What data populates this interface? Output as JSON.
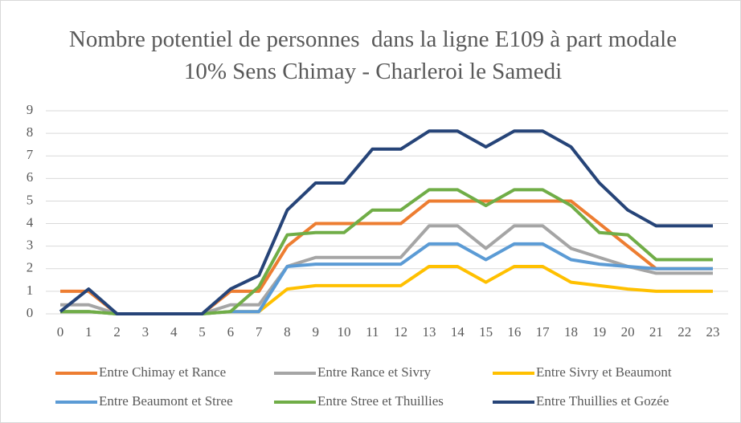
{
  "chart_data": {
    "type": "line",
    "title": "Nombre potentiel de personnes  dans la ligne E109 à part modale 10% Sens Chimay - Charleroi le Samedi",
    "x": [
      0,
      1,
      2,
      3,
      4,
      5,
      6,
      7,
      8,
      9,
      10,
      11,
      12,
      13,
      14,
      15,
      16,
      17,
      18,
      19,
      20,
      21,
      22,
      23
    ],
    "xlim": [
      0,
      23
    ],
    "xticks": [
      0,
      1,
      2,
      3,
      4,
      5,
      6,
      7,
      8,
      9,
      10,
      11,
      12,
      13,
      14,
      15,
      16,
      17,
      18,
      19,
      20,
      21,
      22,
      23
    ],
    "ylim": [
      0,
      9
    ],
    "yticks": [
      0,
      1,
      2,
      3,
      4,
      5,
      6,
      7,
      8,
      9
    ],
    "grid": true,
    "legend": "bottom",
    "series": [
      {
        "name": "Entre Chimay et Rance",
        "color": "#ED7D31",
        "values": [
          1,
          1,
          0,
          0,
          0,
          0,
          1,
          1,
          3,
          4,
          4,
          4,
          4,
          5,
          5,
          5,
          5,
          5,
          5,
          4,
          3,
          2,
          2,
          2
        ]
      },
      {
        "name": "Entre Rance et Sivry",
        "color": "#A5A5A5",
        "values": [
          0.4,
          0.4,
          0,
          0,
          0,
          0,
          0.4,
          0.4,
          2.1,
          2.5,
          2.5,
          2.5,
          2.5,
          3.9,
          3.9,
          2.9,
          3.9,
          3.9,
          2.9,
          2.5,
          2.1,
          1.8,
          1.8,
          1.8
        ]
      },
      {
        "name": "Entre Sivry et Beaumont",
        "color": "#FFC000",
        "values": [
          0.1,
          0.1,
          0,
          0,
          0,
          0,
          0.1,
          0.1,
          1.1,
          1.25,
          1.25,
          1.25,
          1.25,
          2.1,
          2.1,
          1.4,
          2.1,
          2.1,
          1.4,
          1.25,
          1.1,
          1,
          1,
          1
        ]
      },
      {
        "name": "Entre Beaumont et Stree",
        "color": "#5B9BD5",
        "values": [
          0.1,
          0.1,
          0,
          0,
          0,
          0,
          0.1,
          0.1,
          2.1,
          2.2,
          2.2,
          2.2,
          2.2,
          3.1,
          3.1,
          2.4,
          3.1,
          3.1,
          2.4,
          2.2,
          2.1,
          2,
          2,
          2
        ]
      },
      {
        "name": "Entre Stree et Thuillies",
        "color": "#70AD47",
        "values": [
          0.1,
          0.1,
          0,
          0,
          0,
          0,
          0.1,
          1.2,
          3.5,
          3.6,
          3.6,
          4.6,
          4.6,
          5.5,
          5.5,
          4.8,
          5.5,
          5.5,
          4.8,
          3.6,
          3.5,
          2.4,
          2.4,
          2.4
        ]
      },
      {
        "name": "Entre Thuillies et Gozée",
        "color": "#264478",
        "values": [
          0.1,
          1.1,
          0,
          0,
          0,
          0,
          1.1,
          1.7,
          4.6,
          5.8,
          5.8,
          7.3,
          7.3,
          8.1,
          8.1,
          7.4,
          8.1,
          8.1,
          7.4,
          5.8,
          4.6,
          3.9,
          3.9,
          3.9
        ]
      }
    ]
  }
}
